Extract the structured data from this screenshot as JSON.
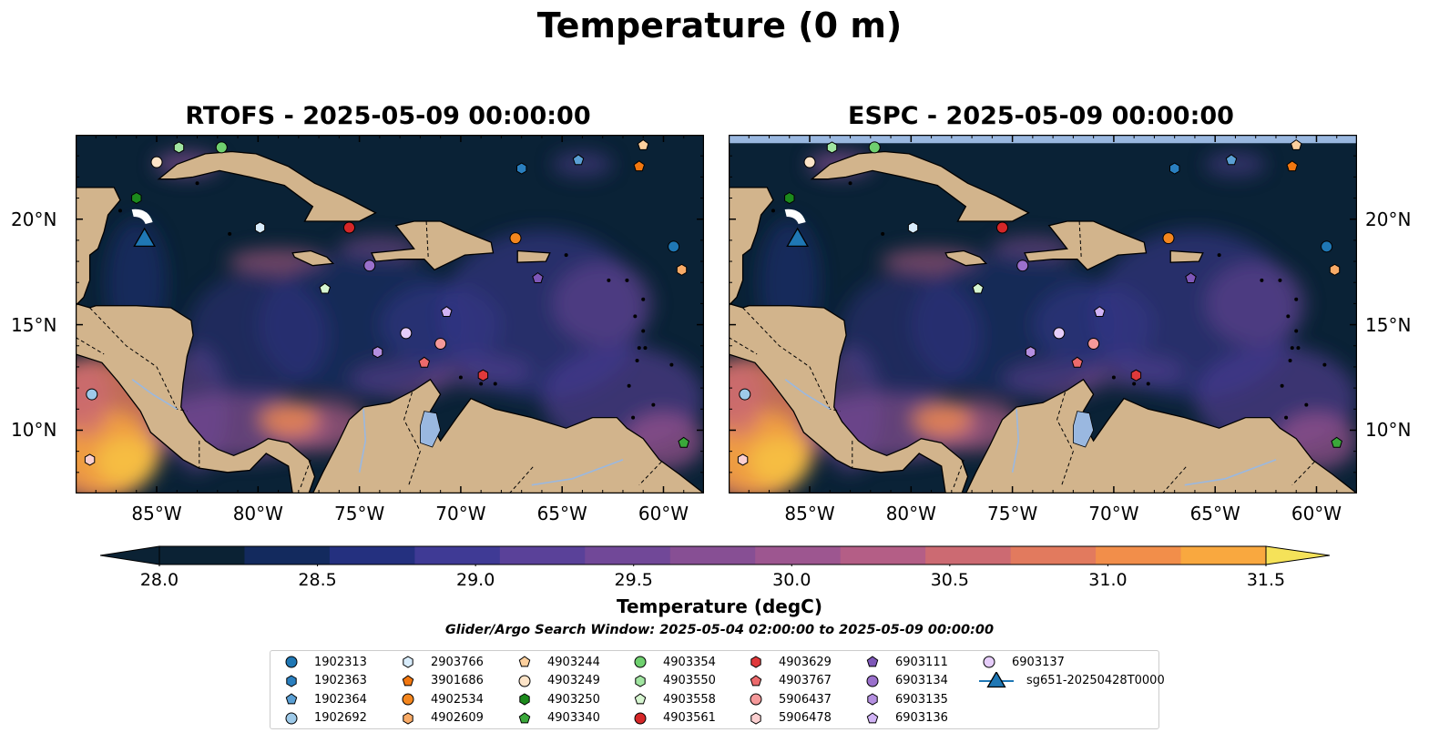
{
  "title": "Temperature (0 m)",
  "panels": [
    {
      "id": "rtofs",
      "title": "RTOFS - 2025-05-09 00:00:00"
    },
    {
      "id": "espc",
      "title": "ESPC - 2025-05-09 00:00:00"
    }
  ],
  "map": {
    "lon_range": [
      -89,
      -58
    ],
    "lat_range": [
      7,
      24
    ],
    "lon_ticks": [
      "85°W",
      "80°W",
      "75°W",
      "70°W",
      "65°W",
      "60°W"
    ],
    "lat_ticks": [
      "20°N",
      "15°N",
      "10°N"
    ],
    "colors": {
      "ocean": "#0a2236",
      "land": "#d2b48c",
      "lake": "#9ab8e0",
      "missing": "#9ab8e0"
    }
  },
  "colorbar": {
    "label": "Temperature (degC)",
    "min": 28.0,
    "max": 31.5,
    "step": 0.25,
    "ticks": [
      "28.0",
      "28.5",
      "29.0",
      "29.5",
      "30.0",
      "30.5",
      "31.0",
      "31.5"
    ],
    "colors": [
      "#0b2234",
      "#132a5e",
      "#24307f",
      "#3f3a95",
      "#5a4199",
      "#714898",
      "#874f94",
      "#9d5690",
      "#b45e86",
      "#cc6a72",
      "#e27a5e",
      "#f28e4a",
      "#f9a83f",
      "#f8c544",
      "#f5e259"
    ]
  },
  "search_window": "Glider/Argo Search Window: 2025-05-04 02:00:00 to 2025-05-09 00:00:00",
  "legend": {
    "items": [
      {
        "label": "1902313",
        "shape": "circle",
        "color": "#1f77b4"
      },
      {
        "label": "1902363",
        "shape": "hexagon",
        "color": "#2a7fbf"
      },
      {
        "label": "1902364",
        "shape": "pentagon",
        "color": "#5a9fd4"
      },
      {
        "label": "1902692",
        "shape": "circle",
        "color": "#9ecae9"
      },
      {
        "label": "2903766",
        "shape": "hexagon",
        "color": "#d8ecfb"
      },
      {
        "label": "3901686",
        "shape": "pentagon",
        "color": "#f2770f"
      },
      {
        "label": "4902534",
        "shape": "circle",
        "color": "#f4861e"
      },
      {
        "label": "4902609",
        "shape": "hexagon",
        "color": "#f9ab67"
      },
      {
        "label": "4903244",
        "shape": "pentagon",
        "color": "#fdd09e"
      },
      {
        "label": "4903249",
        "shape": "circle",
        "color": "#fde4c8"
      },
      {
        "label": "4903250",
        "shape": "hexagon",
        "color": "#1c8a1c"
      },
      {
        "label": "4903340",
        "shape": "pentagon",
        "color": "#3aa83a"
      },
      {
        "label": "4903354",
        "shape": "circle",
        "color": "#6fd06f"
      },
      {
        "label": "4903550",
        "shape": "hexagon",
        "color": "#a1e5a1"
      },
      {
        "label": "4903558",
        "shape": "pentagon",
        "color": "#d6f5d0"
      },
      {
        "label": "4903561",
        "shape": "circle",
        "color": "#d62728"
      },
      {
        "label": "4903629",
        "shape": "hexagon",
        "color": "#e0393b"
      },
      {
        "label": "4903767",
        "shape": "pentagon",
        "color": "#ec6a6c"
      },
      {
        "label": "5906437",
        "shape": "circle",
        "color": "#f5999a"
      },
      {
        "label": "5906478",
        "shape": "hexagon",
        "color": "#fbcfd0"
      },
      {
        "label": "6903111",
        "shape": "pentagon",
        "color": "#7e57b8"
      },
      {
        "label": "6903134",
        "shape": "circle",
        "color": "#9a70cc"
      },
      {
        "label": "6903135",
        "shape": "hexagon",
        "color": "#b48fe0"
      },
      {
        "label": "6903136",
        "shape": "pentagon",
        "color": "#d1b3f5"
      },
      {
        "label": "6903137",
        "shape": "circle",
        "color": "#e6cdfa"
      },
      {
        "label": "sg651-20250428T0000",
        "shape": "triangle",
        "color": "#1f77b4"
      }
    ]
  },
  "observations": [
    {
      "id": "1902313",
      "lon": -59.5,
      "lat": 18.7
    },
    {
      "id": "1902363",
      "lon": -67.0,
      "lat": 22.4
    },
    {
      "id": "1902364",
      "lon": -64.2,
      "lat": 22.8
    },
    {
      "id": "1902692",
      "lon": -88.2,
      "lat": 11.7
    },
    {
      "id": "2903766",
      "lon": -79.9,
      "lat": 19.6
    },
    {
      "id": "3901686",
      "lon": -61.2,
      "lat": 22.5
    },
    {
      "id": "4902534",
      "lon": -67.3,
      "lat": 19.1
    },
    {
      "id": "4902609",
      "lon": -59.1,
      "lat": 17.6
    },
    {
      "id": "4903244",
      "lon": -61.0,
      "lat": 23.5
    },
    {
      "id": "4903249",
      "lon": -85.0,
      "lat": 22.7
    },
    {
      "id": "4903250",
      "lon": -86.0,
      "lat": 21.0
    },
    {
      "id": "4903340",
      "lon": -59.0,
      "lat": 9.4
    },
    {
      "id": "4903354",
      "lon": -81.8,
      "lat": 23.4
    },
    {
      "id": "4903550",
      "lon": -83.9,
      "lat": 23.4
    },
    {
      "id": "4903558",
      "lon": -76.7,
      "lat": 16.7
    },
    {
      "id": "4903561",
      "lon": -75.5,
      "lat": 19.6
    },
    {
      "id": "4903629",
      "lon": -68.9,
      "lat": 12.6
    },
    {
      "id": "4903767",
      "lon": -71.8,
      "lat": 13.2
    },
    {
      "id": "5906437",
      "lon": -71.0,
      "lat": 14.1
    },
    {
      "id": "5906478",
      "lon": -88.3,
      "lat": 8.6
    },
    {
      "id": "6903111",
      "lon": -66.2,
      "lat": 17.2
    },
    {
      "id": "6903134",
      "lon": -74.5,
      "lat": 17.8
    },
    {
      "id": "6903135",
      "lon": -74.1,
      "lat": 13.7
    },
    {
      "id": "6903136",
      "lon": -70.7,
      "lat": 15.6
    },
    {
      "id": "6903137",
      "lon": -72.7,
      "lat": 14.6
    },
    {
      "id": "sg651-20250428T0000",
      "lon": -85.6,
      "lat": 19.0
    }
  ]
}
